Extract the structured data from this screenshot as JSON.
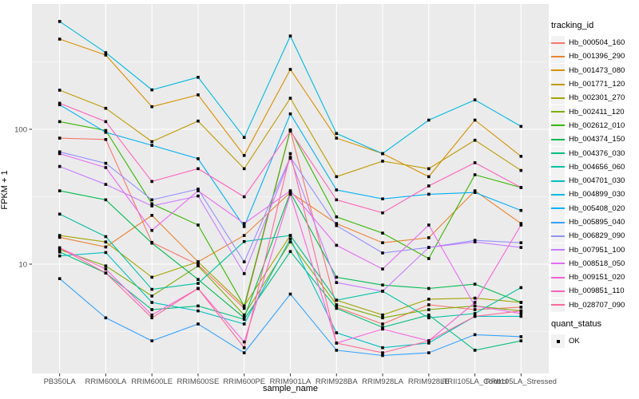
{
  "figure": {
    "bg": "#FFFFFF",
    "panel_bg": "#EBEBEB",
    "grid_major_color": "#FFFFFF",
    "grid_minor_color": "#FFFFFF",
    "tick_mark_color": "#333333",
    "tick_label_color": "#4D4D4D",
    "point_color": "#000000"
  },
  "axes": {
    "y_title": "FPKM + 1",
    "x_title": "sample_name",
    "y_tick_labels": [
      "100",
      "10"
    ],
    "y_tick_values": [
      100,
      10
    ]
  },
  "legend": {
    "tracking_title": "tracking_id",
    "quant_title": "quant_status",
    "quant_items": [
      {
        "label": "OK",
        "marker": "filled-black-square"
      }
    ]
  },
  "chart_data": {
    "type": "line",
    "title": "",
    "xlabel": "sample_name",
    "ylabel": "FPKM + 1",
    "y_scale": "log10",
    "ylim": [
      1.55,
      850
    ],
    "grid": true,
    "legend_position": "right",
    "point_marker": "filled-square",
    "x_categories": [
      "PB350LA",
      "RRIM600LA",
      "RRIM600LE",
      "RRIM600SE",
      "RRIM600PE",
      "RRIM901LA",
      "RRIM928BA",
      "RRIM928LA",
      "RRIM928LE",
      "RRII105LA_Control",
      "RRII105LA_Stressed"
    ],
    "series": [
      {
        "name": "Hb_000504_160",
        "color": "#F8766D",
        "values": [
          86,
          84,
          14.5,
          9.9,
          4.7,
          98,
          4.8,
          3.6,
          5.0,
          4.6,
          4.8
        ]
      },
      {
        "name": "Hb_001396_290",
        "color": "#EA8331",
        "values": [
          15.8,
          13.4,
          23,
          10.4,
          16.3,
          34,
          20,
          14.4,
          15.7,
          35,
          20
        ]
      },
      {
        "name": "Hb_001473_080",
        "color": "#D89000",
        "values": [
          466,
          355,
          147,
          180,
          64,
          278,
          86,
          66,
          44.5,
          117,
          63
        ]
      },
      {
        "name": "Hb_001771_120",
        "color": "#C09B00",
        "values": [
          195,
          143,
          81,
          115,
          51,
          170,
          44.5,
          58,
          51,
          83,
          49.5
        ]
      },
      {
        "name": "Hb_002301_270",
        "color": "#A3A500",
        "values": [
          16.3,
          14.6,
          8.0,
          10.4,
          4.9,
          16.3,
          5.4,
          4.2,
          5.5,
          5.6,
          5.2
        ]
      },
      {
        "name": "Hb_002411_120",
        "color": "#7CAE00",
        "values": [
          12.8,
          9.7,
          5.8,
          9.7,
          4.2,
          14.6,
          5.0,
          4.0,
          4.6,
          4.9,
          4.5
        ]
      },
      {
        "name": "Hb_002612_010",
        "color": "#39B600",
        "values": [
          114,
          98,
          28,
          19.5,
          4.9,
          99,
          22.4,
          17,
          11,
          46,
          37
        ]
      },
      {
        "name": "Hb_004374_150",
        "color": "#00BB4E",
        "values": [
          35,
          30,
          14.3,
          7.7,
          4.0,
          34,
          8.0,
          7.0,
          6.6,
          7.1,
          5.2
        ]
      },
      {
        "name": "Hb_004376_030",
        "color": "#00BF7D",
        "values": [
          12.3,
          8.6,
          4.6,
          4.9,
          3.9,
          12.4,
          4.7,
          3.4,
          4.2,
          2.3,
          2.7
        ]
      },
      {
        "name": "Hb_004656_060",
        "color": "#00C1A3",
        "values": [
          23.5,
          16,
          6.5,
          7.2,
          14.7,
          16.3,
          5.4,
          6.3,
          4.0,
          4.3,
          6.7
        ]
      },
      {
        "name": "Hb_004701_030",
        "color": "#00BFC4",
        "values": [
          11.5,
          12.2,
          5.2,
          4.5,
          3.6,
          15.4,
          3.1,
          2.4,
          2.6,
          4.1,
          4.1
        ]
      },
      {
        "name": "Hb_004899_030",
        "color": "#00BAE0",
        "values": [
          630,
          370,
          196,
          243,
          87,
          492,
          93,
          66,
          117,
          165,
          105
        ]
      },
      {
        "name": "Hb_005408_020",
        "color": "#00B0F6",
        "values": [
          152,
          95,
          76,
          60.5,
          19,
          130,
          35.5,
          30.5,
          33,
          34,
          25
        ]
      },
      {
        "name": "Hb_005895_040",
        "color": "#35A2FF",
        "values": [
          7.8,
          4.0,
          2.7,
          3.6,
          2.2,
          6.0,
          2.3,
          2.1,
          2.2,
          3.0,
          2.9
        ]
      },
      {
        "name": "Hb_006829_090",
        "color": "#9590FF",
        "values": [
          68,
          56,
          30,
          36,
          10.4,
          62,
          19.3,
          12.1,
          13.3,
          15,
          14.4
        ]
      },
      {
        "name": "Hb_007951_100",
        "color": "#C77CFF",
        "values": [
          53,
          39,
          27,
          32,
          8.5,
          61,
          7.3,
          6.3,
          13.3,
          14.6,
          13.3
        ]
      },
      {
        "name": "Hb_008518_050",
        "color": "#E76BF3",
        "values": [
          66,
          52,
          17.8,
          35,
          20,
          35,
          13.8,
          9.2,
          19.5,
          4.9,
          4.3
        ]
      },
      {
        "name": "Hb_009151_020",
        "color": "#FA62DB",
        "values": [
          13.2,
          9.2,
          4.2,
          6.6,
          2.65,
          33,
          2.6,
          3.3,
          2.7,
          5.2,
          19.5
        ]
      },
      {
        "name": "Hb_009851_110",
        "color": "#FF62BC",
        "values": [
          156,
          114,
          41,
          51,
          31.6,
          97,
          30,
          24,
          38,
          56.5,
          37
        ]
      },
      {
        "name": "Hb_028707_090",
        "color": "#FF6A98",
        "values": [
          13.2,
          8.6,
          4.0,
          6.6,
          2.4,
          66,
          2.6,
          2.2,
          2.7,
          4.1,
          4.5
        ]
      }
    ]
  }
}
